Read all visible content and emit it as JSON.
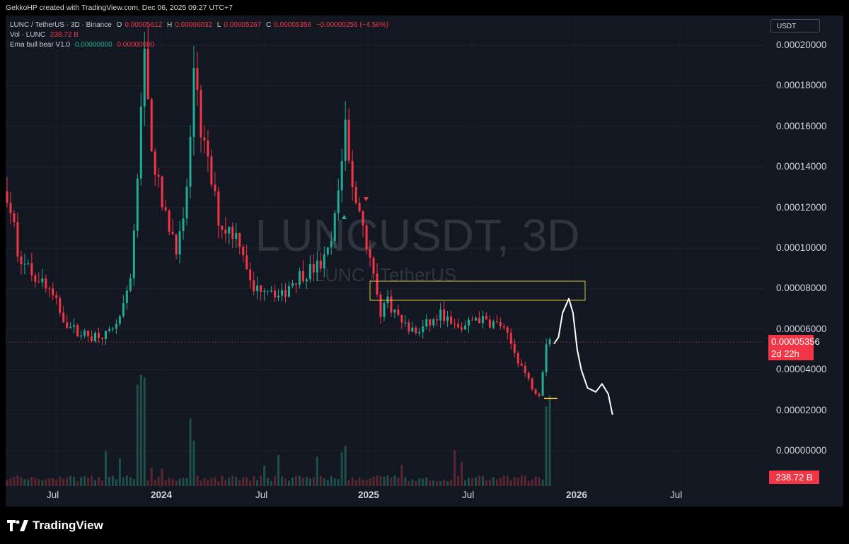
{
  "credit": "GekkoHP created with TradingView.com, Dec 06, 2025 09:27 UTC+7",
  "legend": {
    "symbol": "LUNC / TetherUS · 3D · Binance",
    "o_label": "O",
    "o": "0.00005612",
    "h_label": "H",
    "h": "0.00006032",
    "l_label": "L",
    "l": "0.00005267",
    "c_label": "C",
    "c": "0.00005356",
    "change": "−0.00000256 (−4.56%)",
    "vol_label": "Vol · LUNC",
    "vol": "238.72 B",
    "indicator_label": "Ema bull bear V1.0",
    "ind_value1": "0.00000000",
    "ind_value2": "0.00000000"
  },
  "watermark": {
    "title": "LUNCUSDT, 3D",
    "subtitle": "LUNC / TetherUS"
  },
  "currency_label": "USDT",
  "price_label": "0.00005356",
  "countdown": "2d 22h",
  "volume_label": "238.72 B",
  "logo_text": "TradingView",
  "colors": {
    "up": "#22ab94",
    "down": "#f23645",
    "background": "#131722",
    "zone": "#d9c53a"
  },
  "chart_data": {
    "type": "candlestick",
    "y_ticks": [
      "0.00020000",
      "0.00018000",
      "0.00016000",
      "0.00014000",
      "0.00012000",
      "0.00010000",
      "0.00008000",
      "0.00006000",
      "0.00004000",
      "0.00002000",
      "0.00000000"
    ],
    "ylim": [
      0,
      0.0002
    ],
    "x_ticks": [
      "Jul",
      "2024",
      "Jul",
      "2025",
      "Jul",
      "2026",
      "Jul"
    ],
    "x_ticks_bold": [
      false,
      true,
      false,
      true,
      false,
      true,
      false
    ],
    "last_price": 5.356e-05,
    "resistance_zone": {
      "price_low": 7.4e-05,
      "price_high": 8.3e-05,
      "start": "2025-01",
      "end": "2025-12"
    },
    "series": [
      {
        "name": "LUNC / TetherUS",
        "close_path": [
          [
            0.0,
            0.000128
          ],
          [
            0.6,
            0.000112
          ],
          [
            1.0,
            0.0001
          ],
          [
            1.6,
            9.2e-05
          ],
          [
            2.4,
            8.8e-05
          ],
          [
            3.2,
            8.5e-05
          ],
          [
            4.0,
            8e-05
          ],
          [
            4.8,
            7.2e-05
          ],
          [
            5.6,
            6.4e-05
          ],
          [
            6.4,
            6e-05
          ],
          [
            7.2,
            5.8e-05
          ],
          [
            8.0,
            5.6e-05
          ],
          [
            8.8,
            5.8e-05
          ],
          [
            9.6,
            5.7e-05
          ],
          [
            10.4,
            6.2e-05
          ],
          [
            11.2,
            7e-05
          ],
          [
            12.0,
            9e-05
          ],
          [
            12.4,
            0.00012
          ],
          [
            12.8,
            0.000165
          ],
          [
            13.2,
            0.000195
          ],
          [
            13.6,
            0.00017
          ],
          [
            14.0,
            0.00015
          ],
          [
            14.6,
            0.00013
          ],
          [
            15.2,
            0.000115
          ],
          [
            15.8,
            0.00011
          ],
          [
            16.4,
            0.0001
          ],
          [
            17.0,
            0.00011
          ],
          [
            17.4,
            0.000135
          ],
          [
            17.8,
            0.00016
          ],
          [
            18.0,
            0.00019
          ],
          [
            18.4,
            0.00017
          ],
          [
            18.8,
            0.000155
          ],
          [
            19.4,
            0.00014
          ],
          [
            20.0,
            0.000125
          ],
          [
            20.6,
            0.00011
          ],
          [
            21.2,
            0.00011
          ],
          [
            21.8,
            0.000108
          ],
          [
            22.4,
            0.000105
          ],
          [
            23.0,
            9.5e-05
          ],
          [
            23.6,
            7.8e-05
          ],
          [
            24.2,
            8e-05
          ],
          [
            24.8,
            8.2e-05
          ],
          [
            25.6,
            8e-05
          ],
          [
            26.4,
            7.5e-05
          ],
          [
            27.2,
            8.2e-05
          ],
          [
            28.0,
            8.6e-05
          ],
          [
            28.8,
            8.8e-05
          ],
          [
            29.6,
            9e-05
          ],
          [
            30.4,
            9.2e-05
          ],
          [
            31.2,
            0.0001
          ],
          [
            31.8,
            0.00012
          ],
          [
            32.2,
            0.00014
          ],
          [
            32.6,
            0.000165
          ],
          [
            33.0,
            0.00014
          ],
          [
            33.6,
            0.000125
          ],
          [
            34.2,
            0.000115
          ],
          [
            34.8,
            0.0001
          ],
          [
            35.4,
            8.5e-05
          ],
          [
            36.0,
            6.8e-05
          ],
          [
            36.6,
            7.5e-05
          ],
          [
            37.2,
            7e-05
          ],
          [
            38.0,
            6.4e-05
          ],
          [
            38.8,
            6e-05
          ],
          [
            39.6,
            5.8e-05
          ],
          [
            40.4,
            6.2e-05
          ],
          [
            41.2,
            6.4e-05
          ],
          [
            42.0,
            6.8e-05
          ],
          [
            42.8,
            6.2e-05
          ],
          [
            43.6,
            6e-05
          ],
          [
            44.4,
            6.2e-05
          ],
          [
            45.2,
            6.6e-05
          ],
          [
            46.0,
            6.4e-05
          ],
          [
            46.8,
            6.3e-05
          ],
          [
            47.6,
            6.2e-05
          ],
          [
            48.4,
            5.5e-05
          ],
          [
            49.0,
            4.8e-05
          ],
          [
            49.6,
            4.2e-05
          ],
          [
            50.2,
            3.6e-05
          ],
          [
            50.8,
            3e-05
          ],
          [
            51.4,
            2.8e-05
          ],
          [
            52.0,
            5.4e-05
          ],
          [
            52.4,
            5.4e-05
          ]
        ],
        "volume_path": [
          [
            0,
            0.02
          ],
          [
            12.6,
            0.95
          ],
          [
            13.2,
            1.0
          ],
          [
            17.9,
            0.6
          ],
          [
            32.6,
            0.4
          ],
          [
            52.2,
            1.0
          ]
        ]
      },
      {
        "name": "",
        "drawing_path": [
          [
            52.8,
            5.3e-05
          ],
          [
            53.2,
            5.6e-05
          ],
          [
            53.6,
            6.8e-05
          ],
          [
            54.2,
            7.5e-05
          ],
          [
            54.6,
            6.8e-05
          ],
          [
            55.0,
            5e-05
          ],
          [
            55.4,
            4e-05
          ],
          [
            56.0,
            3.1e-05
          ],
          [
            56.8,
            2.9e-05
          ],
          [
            57.4,
            3.3e-05
          ],
          [
            58.0,
            2.8e-05
          ],
          [
            58.4,
            1.8e-05
          ]
        ]
      }
    ]
  }
}
